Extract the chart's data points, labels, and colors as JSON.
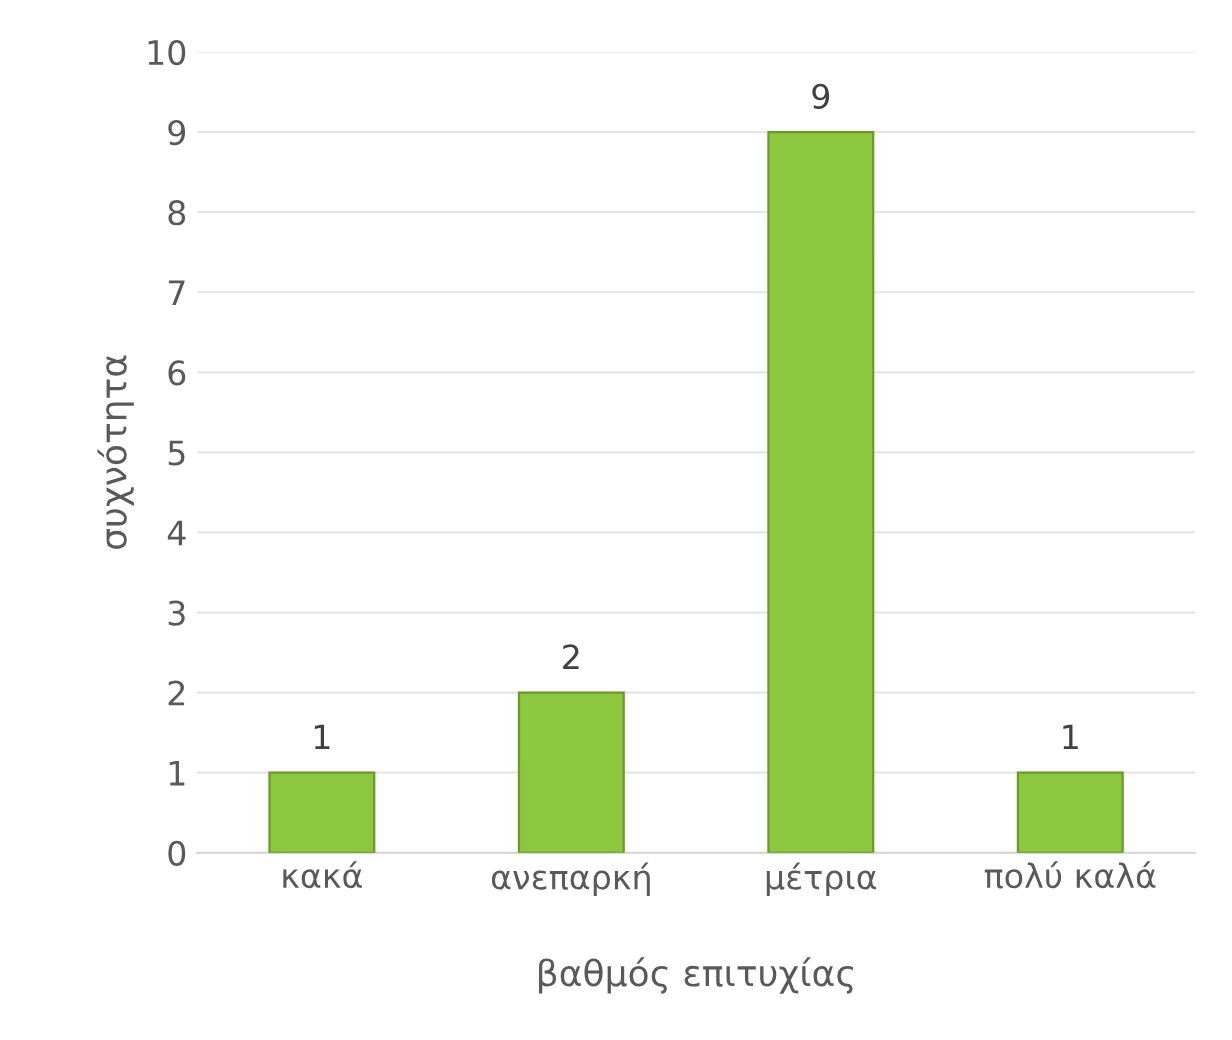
{
  "chart_data": {
    "type": "bar",
    "xlabel": "βαθμός επιτυχίας",
    "ylabel": "συχνότητα",
    "categories": [
      "κακά",
      "ανεπαρκή",
      "μέτρια",
      "πολύ καλά"
    ],
    "values": [
      1,
      2,
      9,
      1
    ],
    "color": "#8dc63f",
    "ylim": [
      0,
      10
    ],
    "yticks": [
      0,
      1,
      2,
      3,
      4,
      5,
      6,
      7,
      8,
      9,
      10
    ],
    "grid": "y",
    "data_labels": true
  }
}
